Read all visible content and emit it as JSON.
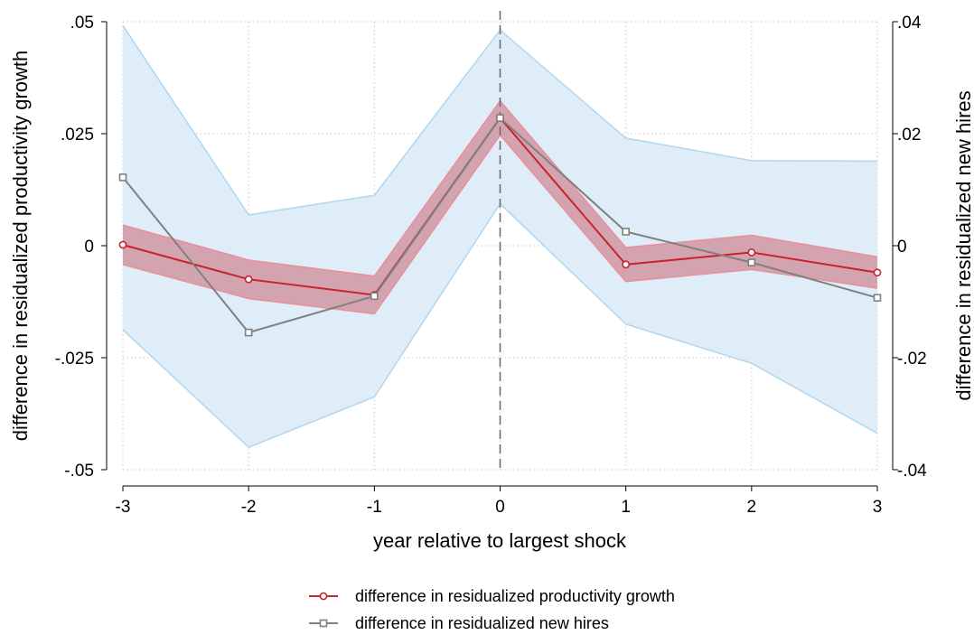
{
  "chart_data": {
    "type": "line",
    "xlabel": "year relative to largest shock",
    "ylabel_left": "difference in residualized productivity growth",
    "ylabel_right": "difference in residualized new hires",
    "x": [
      -3,
      -2,
      -1,
      0,
      1,
      2,
      3
    ],
    "x_tick_labels": [
      "-3",
      "-2",
      "-1",
      "0",
      "1",
      "2",
      "3"
    ],
    "ylim_left": [
      -0.05,
      0.05
    ],
    "yticks_left": [
      -0.05,
      -0.025,
      0,
      0.025,
      0.05
    ],
    "ytick_labels_left": [
      "-.05",
      "-.025",
      "0",
      ".025",
      ".05"
    ],
    "ylim_right": [
      -0.04,
      0.04
    ],
    "yticks_right": [
      -0.04,
      -0.02,
      0,
      0.02,
      0.04
    ],
    "ytick_labels_right": [
      "-.04",
      "-.02",
      "0",
      ".02",
      ".04"
    ],
    "reference_line_x": 0,
    "grid": true,
    "legend_position": "bottom-center",
    "series": [
      {
        "name": "difference in residualized productivity growth",
        "axis": "left",
        "color": "#c8232c",
        "marker": "circle",
        "values": [
          0.0002,
          -0.0075,
          -0.011,
          0.0285,
          -0.0042,
          -0.0015,
          -0.006
        ],
        "ci_lower": [
          -0.0042,
          -0.0118,
          -0.0152,
          0.0247,
          -0.008,
          -0.0053,
          -0.0095
        ],
        "ci_upper": [
          0.0046,
          -0.0032,
          -0.0068,
          0.0323,
          -0.0004,
          0.0023,
          -0.0025
        ],
        "ci_fill": "#d08a98",
        "ci_edge": "#e8919c"
      },
      {
        "name": "difference in residualized new hires",
        "axis": "right",
        "color": "#808080",
        "marker": "square",
        "values": [
          0.0122,
          -0.0155,
          -0.009,
          0.0228,
          0.0025,
          -0.003,
          -0.0093
        ],
        "ci_lower": [
          -0.015,
          -0.036,
          -0.027,
          0.0075,
          -0.014,
          -0.021,
          -0.0335
        ],
        "ci_upper": [
          0.0393,
          0.0055,
          0.009,
          0.0385,
          0.0192,
          0.0152,
          0.0151
        ],
        "ci_fill": "#deedf8",
        "ci_edge": "#b4d8ee"
      }
    ]
  }
}
